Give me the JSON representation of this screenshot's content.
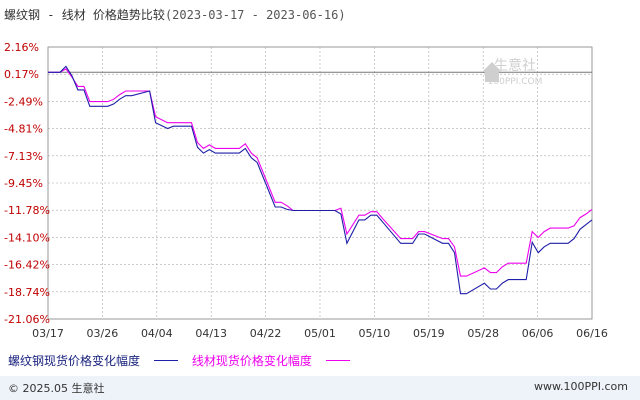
{
  "header": {
    "product": "螺纹钢",
    "sep": " - ",
    "compare": "线材 价格趋势比较",
    "range": "(2023-03-17 - 2023-06-16)"
  },
  "watermark": {
    "cn": "生意社",
    "en": "100PPI.COM"
  },
  "footer": {
    "copyright": "© 2025.05 生意社",
    "site": "www.100PPI.com"
  },
  "colors": {
    "series1": "#1f1fa8",
    "series2": "#ee00ee",
    "grid": "#aaaaaa",
    "axis": "#c00000",
    "watermark": "#cfcfcf"
  },
  "chart_data": {
    "type": "line",
    "title": "螺纹钢 - 线材 价格趋势比较(2023-03-17 - 2023-06-16)",
    "ylim": [
      -21.06,
      2.16
    ],
    "y_ticks": [
      "2.16%",
      "0.17%",
      "-2.49%",
      "-4.81%",
      "-7.13%",
      "-9.45%",
      "-11.78%",
      "-14.10%",
      "-16.42%",
      "-18.74%",
      "-21.06%"
    ],
    "x_ticks": [
      "03/17",
      "03/26",
      "04/04",
      "04/13",
      "04/22",
      "05/01",
      "05/10",
      "05/19",
      "05/28",
      "06/06",
      "06/16"
    ],
    "baseline": 0,
    "legend_position": "bottom",
    "grid": true,
    "series": [
      {
        "name": "螺纹钢现货价格变化幅度",
        "x": [
          "2023-03-17",
          "2023-03-19",
          "2023-03-20",
          "2023-03-21",
          "2023-03-22",
          "2023-03-23",
          "2023-03-24",
          "2023-03-27",
          "2023-03-28",
          "2023-03-29",
          "2023-03-30",
          "2023-03-31",
          "2023-04-03",
          "2023-04-04",
          "2023-04-06",
          "2023-04-07",
          "2023-04-10",
          "2023-04-11",
          "2023-04-12",
          "2023-04-13",
          "2023-04-14",
          "2023-04-17",
          "2023-04-18",
          "2023-04-19",
          "2023-04-20",
          "2023-04-21",
          "2023-04-24",
          "2023-04-25",
          "2023-04-26",
          "2023-04-27",
          "2023-04-28",
          "2023-05-04",
          "2023-05-05",
          "2023-05-06",
          "2023-05-08",
          "2023-05-09",
          "2023-05-10",
          "2023-05-11",
          "2023-05-12",
          "2023-05-15",
          "2023-05-16",
          "2023-05-17",
          "2023-05-18",
          "2023-05-19",
          "2023-05-22",
          "2023-05-23",
          "2023-05-24",
          "2023-05-25",
          "2023-05-26",
          "2023-05-29",
          "2023-05-30",
          "2023-05-31",
          "2023-06-01",
          "2023-06-02",
          "2023-06-05",
          "2023-06-06",
          "2023-06-07",
          "2023-06-08",
          "2023-06-09",
          "2023-06-12",
          "2023-06-13",
          "2023-06-14",
          "2023-06-15",
          "2023-06-16"
        ],
        "values": [
          0.0,
          0.0,
          0.5,
          -0.3,
          -1.5,
          -1.5,
          -2.9,
          -2.9,
          -2.7,
          -2.3,
          -2.0,
          -2.0,
          -1.6,
          -4.3,
          -4.8,
          -4.6,
          -4.6,
          -6.4,
          -6.9,
          -6.6,
          -6.9,
          -6.9,
          -6.9,
          -6.5,
          -7.3,
          -7.7,
          -11.5,
          -11.5,
          -11.7,
          -11.8,
          -11.8,
          -11.8,
          -12.1,
          -14.6,
          -12.6,
          -12.6,
          -12.2,
          -12.2,
          -12.8,
          -14.6,
          -14.6,
          -14.6,
          -13.8,
          -13.8,
          -14.6,
          -14.6,
          -15.4,
          -18.9,
          -18.9,
          -18.0,
          -18.5,
          -18.5,
          -18.0,
          -17.7,
          -17.7,
          -14.5,
          -15.4,
          -14.9,
          -14.6,
          -14.6,
          -14.2,
          -13.4,
          -13.0,
          -12.6
        ]
      },
      {
        "name": "线材现货价格变化幅度",
        "x": [
          "2023-03-17",
          "2023-03-19",
          "2023-03-20",
          "2023-03-21",
          "2023-03-22",
          "2023-03-23",
          "2023-03-24",
          "2023-03-27",
          "2023-03-28",
          "2023-03-29",
          "2023-03-30",
          "2023-03-31",
          "2023-04-03",
          "2023-04-04",
          "2023-04-06",
          "2023-04-07",
          "2023-04-10",
          "2023-04-11",
          "2023-04-12",
          "2023-04-13",
          "2023-04-14",
          "2023-04-17",
          "2023-04-18",
          "2023-04-19",
          "2023-04-20",
          "2023-04-21",
          "2023-04-24",
          "2023-04-25",
          "2023-04-26",
          "2023-04-27",
          "2023-04-28",
          "2023-05-04",
          "2023-05-05",
          "2023-05-06",
          "2023-05-08",
          "2023-05-09",
          "2023-05-10",
          "2023-05-11",
          "2023-05-12",
          "2023-05-15",
          "2023-05-16",
          "2023-05-17",
          "2023-05-18",
          "2023-05-19",
          "2023-05-22",
          "2023-05-23",
          "2023-05-24",
          "2023-05-25",
          "2023-05-26",
          "2023-05-29",
          "2023-05-30",
          "2023-05-31",
          "2023-06-01",
          "2023-06-02",
          "2023-06-05",
          "2023-06-06",
          "2023-06-07",
          "2023-06-08",
          "2023-06-09",
          "2023-06-12",
          "2023-06-13",
          "2023-06-14",
          "2023-06-15",
          "2023-06-16"
        ],
        "values": [
          0.0,
          0.0,
          0.3,
          -0.4,
          -1.2,
          -1.2,
          -2.5,
          -2.5,
          -2.3,
          -1.9,
          -1.6,
          -1.6,
          -1.6,
          -3.8,
          -4.3,
          -4.3,
          -4.3,
          -6.0,
          -6.5,
          -6.2,
          -6.5,
          -6.5,
          -6.5,
          -6.1,
          -6.9,
          -7.3,
          -11.1,
          -11.1,
          -11.4,
          -11.8,
          -11.8,
          -11.8,
          -11.6,
          -13.8,
          -12.2,
          -12.2,
          -11.9,
          -11.9,
          -12.5,
          -14.2,
          -14.2,
          -14.2,
          -13.6,
          -13.6,
          -14.2,
          -14.2,
          -14.9,
          -17.4,
          -17.4,
          -16.7,
          -17.1,
          -17.1,
          -16.6,
          -16.3,
          -16.3,
          -13.6,
          -14.1,
          -13.6,
          -13.3,
          -13.3,
          -13.1,
          -12.4,
          -12.1,
          -11.7
        ]
      }
    ]
  }
}
